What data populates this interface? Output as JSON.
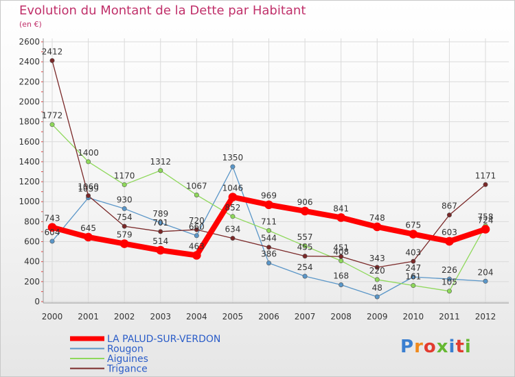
{
  "title": "Evolution du Montant de la Dette par Habitant",
  "unit": "(en €)",
  "logo": {
    "text": "Proxiti",
    "colors": [
      "#3a7fd0",
      "#f08a1c",
      "#e23b2f",
      "#66b832",
      "#3a7fd0",
      "#e23b2f",
      "#66b832"
    ]
  },
  "chart_data": {
    "type": "line",
    "x": [
      "2000",
      "2001",
      "2002",
      "2003",
      "2004",
      "2005",
      "2006",
      "2007",
      "2008",
      "2009",
      "2010",
      "2011",
      "2012"
    ],
    "ylim": [
      0,
      2600
    ],
    "yticks": [
      0,
      200,
      400,
      600,
      800,
      1000,
      1200,
      1400,
      1600,
      1800,
      2000,
      2200,
      2400,
      2600
    ],
    "grid": true,
    "legend_position": "bottom-left",
    "series": [
      {
        "name": "LA PALUD-SUR-VERDON",
        "color": "#ff0000",
        "width": 8,
        "values": [
          743,
          645,
          579,
          514,
          463,
          1046,
          969,
          906,
          841,
          748,
          675,
          603,
          724
        ],
        "labels": [
          "743",
          "645",
          "579",
          "514",
          "463",
          "1046",
          "969",
          "906",
          "841",
          "748",
          "675",
          "603",
          "724"
        ]
      },
      {
        "name": "Rougon",
        "color": "#5a96c8",
        "width": 1.3,
        "values": [
          604,
          1039,
          930,
          789,
          660,
          1350,
          386,
          254,
          168,
          48,
          247,
          226,
          204
        ],
        "labels": [
          "604",
          "1039",
          "930",
          "789",
          "660",
          "1350",
          "386",
          "254",
          "168",
          "48",
          "247",
          "226",
          "204"
        ]
      },
      {
        "name": "Aiguines",
        "color": "#8ed85a",
        "width": 1.3,
        "values": [
          1772,
          1400,
          1170,
          1312,
          1067,
          852,
          711,
          557,
          408,
          220,
          161,
          105,
          758
        ],
        "labels": [
          "1772",
          "1400",
          "1170",
          "1312",
          "1067",
          "852",
          "711",
          "557",
          "408",
          "220",
          "161",
          "105",
          "758"
        ]
      },
      {
        "name": "Trigance",
        "color": "#7a2828",
        "width": 1.3,
        "values": [
          2412,
          1060,
          754,
          701,
          720,
          634,
          544,
          455,
          451,
          343,
          403,
          867,
          1171
        ],
        "labels": [
          "2412",
          "1060",
          "754",
          "701",
          "720",
          "634",
          "544",
          "455",
          "451",
          "343",
          "403",
          "867",
          "1171"
        ]
      }
    ]
  }
}
